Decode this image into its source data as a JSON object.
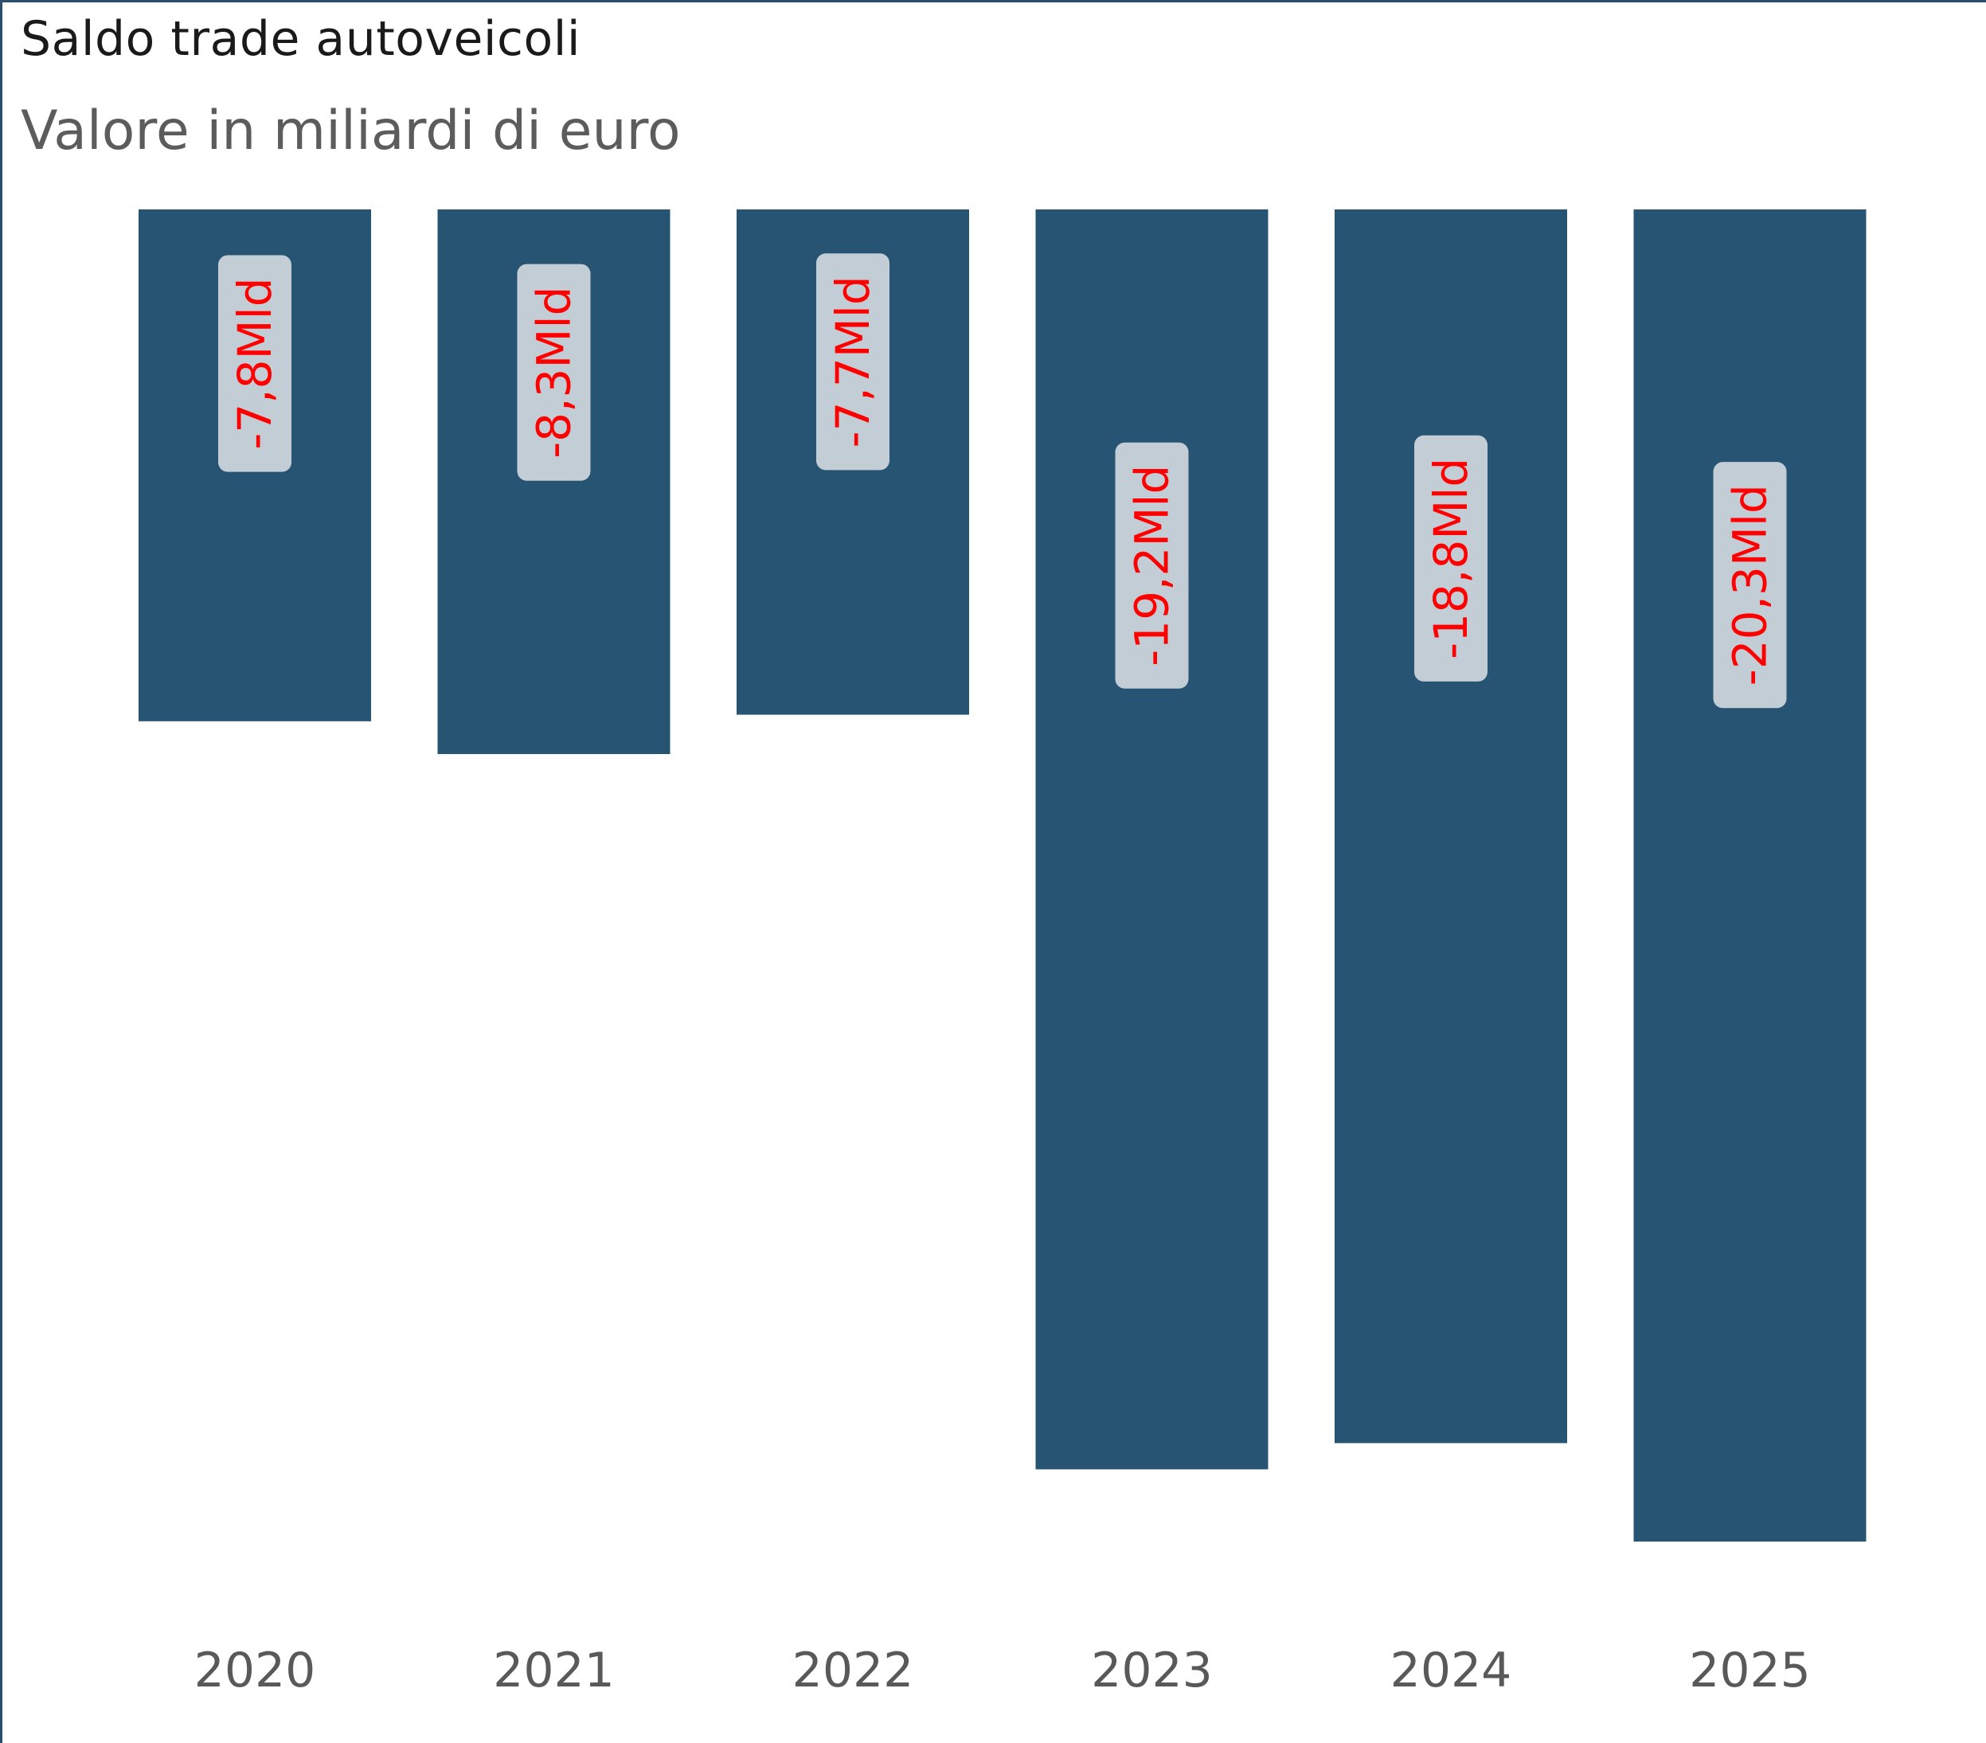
{
  "chart_data": {
    "type": "bar",
    "title": "Saldo trade autoveicoli",
    "subtitle": "Valore in miliardi di euro",
    "xlabel": "",
    "ylabel": "",
    "categories": [
      "2020",
      "2021",
      "2022",
      "2023",
      "2024",
      "2025"
    ],
    "values": [
      -7.8,
      -8.3,
      -7.7,
      -19.2,
      -18.8,
      -20.3
    ],
    "data_labels": [
      "-7,8Mld",
      "-8,3Mld",
      "-7,7Mld",
      "-19,2Mld",
      "-18,8Mld",
      "-20,3Mld"
    ],
    "ylim": [
      -20.3,
      0
    ],
    "grid": false,
    "legend": "none",
    "colors": {
      "bar": "#285473",
      "label_background": "#c3cdd6",
      "label_text": "#ff0000",
      "tick_text": "#595959",
      "frame": "#2a4f6e"
    }
  }
}
